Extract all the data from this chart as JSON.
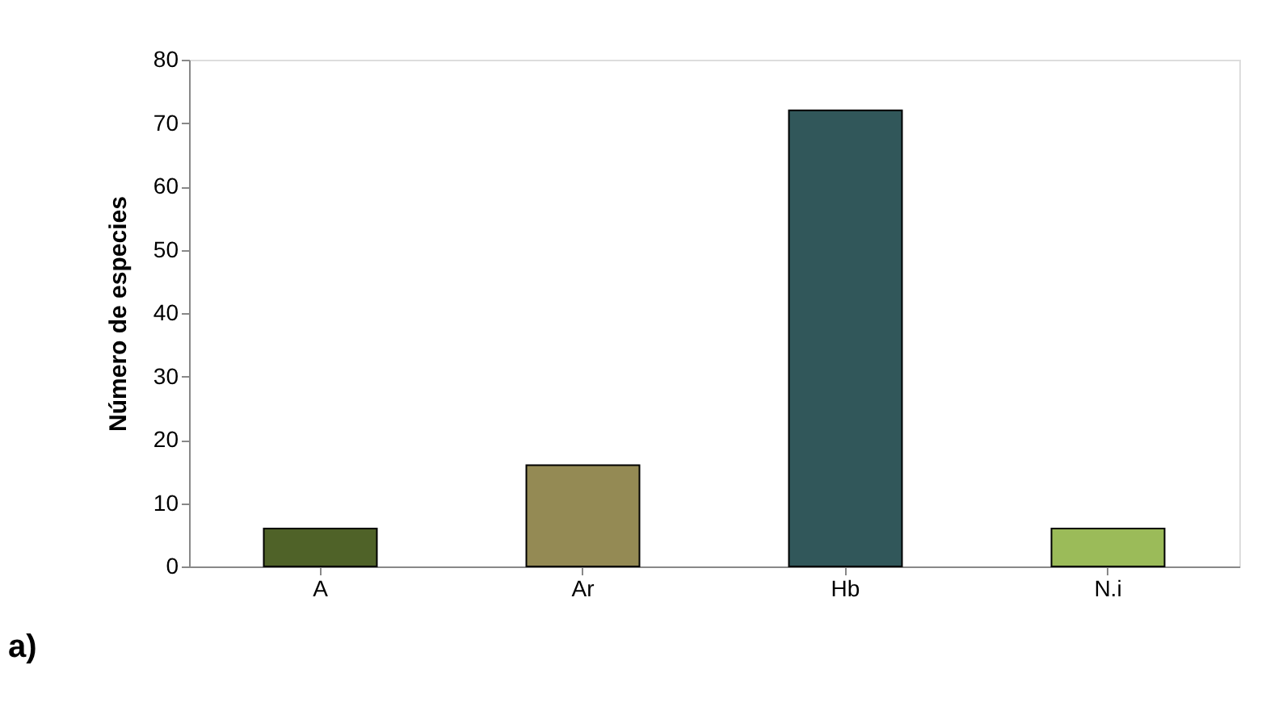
{
  "chart_data": {
    "type": "bar",
    "categories": [
      "A",
      "Ar",
      "Hb",
      "N.i"
    ],
    "values": [
      6,
      16,
      72,
      6
    ],
    "colors": [
      "#4f6228",
      "#948a54",
      "#31575a",
      "#9bbb59"
    ],
    "ylabel": "Número de especies",
    "ylim": [
      0,
      80
    ],
    "yticks": [
      0,
      10,
      20,
      30,
      40,
      50,
      60,
      70,
      80
    ],
    "grid": false,
    "annotations": [
      "a)"
    ]
  }
}
